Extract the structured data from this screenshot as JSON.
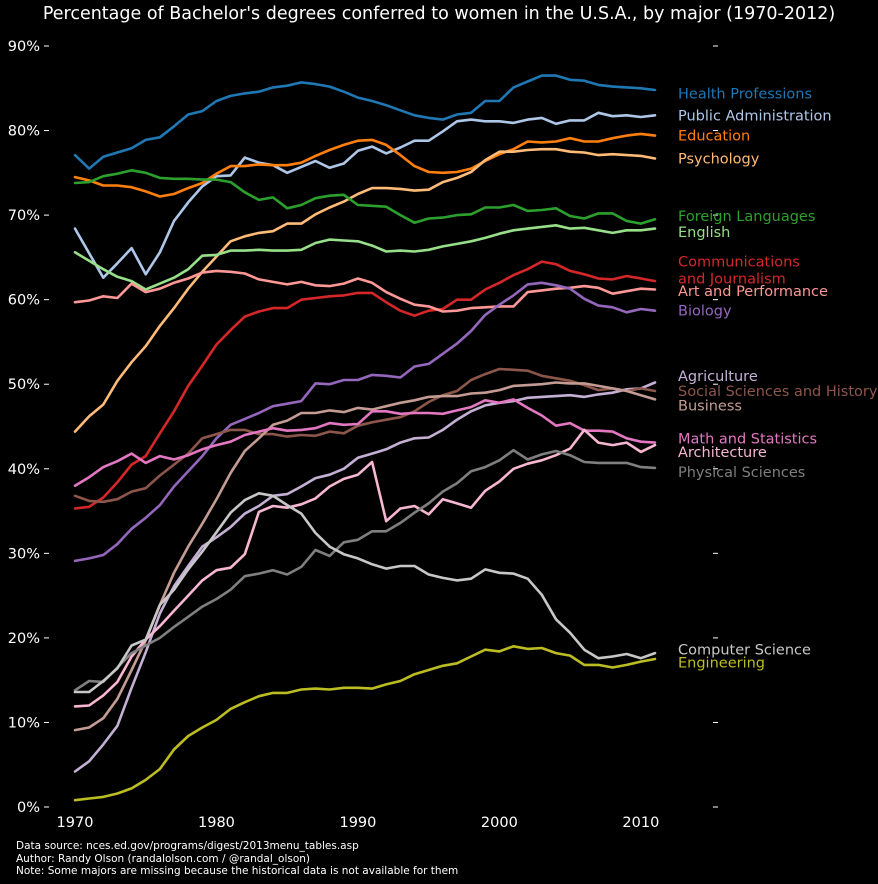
{
  "chart_data": {
    "type": "line",
    "title": "Percentage of Bachelor's degrees conferred to women in the U.S.A., by major (1970-2012)",
    "xlabel": "",
    "ylabel": "",
    "xlim": [
      1970,
      2011
    ],
    "ylim": [
      0,
      90
    ],
    "x_ticks": [
      "1970",
      "1980",
      "1990",
      "2000",
      "2010"
    ],
    "y_ticks": [
      "0%",
      "10%",
      "20%",
      "30%",
      "40%",
      "50%",
      "60%",
      "70%",
      "80%",
      "90%"
    ],
    "grid": false,
    "legend": "none (series labeled directly at line ends)",
    "x": [
      1970,
      1971,
      1972,
      1973,
      1974,
      1975,
      1976,
      1977,
      1978,
      1979,
      1980,
      1981,
      1982,
      1983,
      1984,
      1985,
      1986,
      1987,
      1988,
      1989,
      1990,
      1991,
      1992,
      1993,
      1994,
      1995,
      1996,
      1997,
      1998,
      1999,
      2000,
      2001,
      2002,
      2003,
      2004,
      2005,
      2006,
      2007,
      2008,
      2009,
      2010,
      2011
    ],
    "series": [
      {
        "name": "Health Professions",
        "color": "#1f77b4",
        "label_y": 84.4,
        "values": [
          77.1,
          75.5,
          76.9,
          77.4,
          77.9,
          78.9,
          79.2,
          80.5,
          81.9,
          82.3,
          83.5,
          84.1,
          84.4,
          84.6,
          85.1,
          85.3,
          85.7,
          85.5,
          85.2,
          84.6,
          83.9,
          83.5,
          83.0,
          82.4,
          81.8,
          81.5,
          81.3,
          81.9,
          82.1,
          83.5,
          83.5,
          85.1,
          85.8,
          86.5,
          86.5,
          86.0,
          85.9,
          85.4,
          85.2,
          85.1,
          85.0,
          84.8
        ]
      },
      {
        "name": "Public Administration",
        "color": "#aec7e8",
        "label_y": 81.8,
        "values": [
          68.4,
          65.5,
          62.6,
          64.3,
          66.1,
          63.0,
          65.6,
          69.3,
          71.5,
          73.4,
          74.6,
          74.7,
          76.8,
          76.2,
          75.9,
          75.0,
          75.7,
          76.4,
          75.6,
          76.1,
          77.6,
          78.1,
          77.3,
          78.0,
          78.8,
          78.8,
          79.9,
          81.1,
          81.3,
          81.1,
          81.1,
          80.9,
          81.3,
          81.5,
          80.8,
          81.2,
          81.2,
          82.1,
          81.7,
          81.8,
          81.6,
          81.8
        ]
      },
      {
        "name": "Education",
        "color": "#ff7f0e",
        "label_y": 79.4,
        "values": [
          74.5,
          74.1,
          73.5,
          73.5,
          73.3,
          72.8,
          72.2,
          72.5,
          73.2,
          73.8,
          74.9,
          75.8,
          75.8,
          76.0,
          75.9,
          75.9,
          76.2,
          77.0,
          77.7,
          78.3,
          78.8,
          78.9,
          78.3,
          77.1,
          75.8,
          75.1,
          75.0,
          75.1,
          75.5,
          76.4,
          77.2,
          77.8,
          78.7,
          78.6,
          78.7,
          79.1,
          78.7,
          78.7,
          79.1,
          79.4,
          79.6,
          79.4
        ]
      },
      {
        "name": "Psychology",
        "color": "#ffbb78",
        "label_y": 76.7,
        "values": [
          44.4,
          46.2,
          47.6,
          50.4,
          52.6,
          54.5,
          56.9,
          59.0,
          61.3,
          63.3,
          65.1,
          66.9,
          67.5,
          67.9,
          68.1,
          69.0,
          69.0,
          70.1,
          70.9,
          71.6,
          72.5,
          73.2,
          73.2,
          73.1,
          72.9,
          73.0,
          73.9,
          74.4,
          75.1,
          76.5,
          77.5,
          77.5,
          77.7,
          77.8,
          77.8,
          77.5,
          77.4,
          77.1,
          77.2,
          77.1,
          77.0,
          76.7
        ]
      },
      {
        "name": "Foreign Languages",
        "color": "#2ca02c",
        "label_y": 69.9,
        "values": [
          73.8,
          73.9,
          74.6,
          74.9,
          75.3,
          75.0,
          74.4,
          74.3,
          74.3,
          74.2,
          74.2,
          73.9,
          72.7,
          71.8,
          72.1,
          70.8,
          71.2,
          72.0,
          72.3,
          72.4,
          71.2,
          71.1,
          71.0,
          70.0,
          69.1,
          69.6,
          69.7,
          70.0,
          70.1,
          70.9,
          70.9,
          71.2,
          70.5,
          70.6,
          70.8,
          69.9,
          69.6,
          70.2,
          70.2,
          69.3,
          69.0,
          69.5
        ]
      },
      {
        "name": "English",
        "color": "#98df8a",
        "label_y": 68.0,
        "values": [
          65.6,
          64.6,
          63.6,
          62.7,
          62.2,
          61.2,
          61.9,
          62.6,
          63.6,
          65.2,
          65.3,
          65.8,
          65.8,
          65.9,
          65.8,
          65.8,
          65.9,
          66.7,
          67.1,
          67.0,
          66.9,
          66.4,
          65.7,
          65.8,
          65.7,
          65.9,
          66.3,
          66.6,
          66.9,
          67.3,
          67.8,
          68.2,
          68.4,
          68.6,
          68.8,
          68.4,
          68.5,
          68.2,
          67.9,
          68.2,
          68.2,
          68.4
        ]
      },
      {
        "name": "Communications\nand Journalism",
        "color": "#d62728",
        "label_y": 63.5,
        "values": [
          35.3,
          35.5,
          36.6,
          38.4,
          40.5,
          41.5,
          44.2,
          46.8,
          49.8,
          52.2,
          54.7,
          56.4,
          58.0,
          58.6,
          59.0,
          59.0,
          60.0,
          60.2,
          60.4,
          60.5,
          60.8,
          60.8,
          59.7,
          58.7,
          58.1,
          58.7,
          58.9,
          60.0,
          60.0,
          61.2,
          62.0,
          62.9,
          63.6,
          64.5,
          64.2,
          63.4,
          63.0,
          62.5,
          62.4,
          62.8,
          62.5,
          62.2
        ]
      },
      {
        "name": "Art and Performance",
        "color": "#ff9896",
        "label_y": 61.0,
        "values": [
          59.7,
          59.9,
          60.4,
          60.2,
          61.9,
          60.9,
          61.3,
          62.0,
          62.5,
          63.2,
          63.4,
          63.3,
          63.1,
          62.4,
          62.1,
          61.8,
          62.1,
          61.7,
          61.6,
          61.9,
          62.5,
          62.0,
          60.9,
          60.1,
          59.4,
          59.2,
          58.6,
          58.7,
          59.0,
          59.1,
          59.2,
          59.2,
          60.9,
          61.1,
          61.3,
          61.4,
          61.6,
          61.4,
          60.7,
          61.0,
          61.3,
          61.2
        ]
      },
      {
        "name": "Biology",
        "color": "#9467bd",
        "label_y": 58.7,
        "values": [
          29.1,
          29.4,
          29.8,
          31.1,
          32.9,
          34.2,
          35.7,
          37.9,
          39.7,
          41.5,
          43.6,
          45.2,
          45.9,
          46.6,
          47.4,
          47.7,
          48.0,
          50.1,
          50.0,
          50.5,
          50.5,
          51.1,
          51.0,
          50.8,
          52.1,
          52.4,
          53.6,
          54.8,
          56.3,
          58.2,
          59.4,
          60.5,
          61.8,
          62.0,
          61.7,
          61.3,
          60.1,
          59.3,
          59.1,
          58.5,
          58.9,
          58.7
        ]
      },
      {
        "name": "Agriculture",
        "color": "#c5b0d5",
        "label_y": 51.0,
        "values": [
          4.2,
          5.4,
          7.4,
          9.6,
          14.1,
          18.3,
          22.9,
          26.1,
          28.5,
          30.8,
          31.9,
          33.1,
          34.7,
          35.6,
          36.8,
          37.0,
          37.9,
          38.9,
          39.3,
          40.0,
          41.3,
          41.8,
          42.3,
          43.1,
          43.6,
          43.7,
          44.6,
          45.8,
          46.8,
          47.5,
          47.8,
          48.0,
          48.4,
          48.5,
          48.6,
          48.7,
          48.5,
          48.8,
          49.0,
          49.4,
          49.5,
          50.2
        ]
      },
      {
        "name": "Social Sciences and History",
        "color": "#8c564b",
        "label_y": 49.2,
        "values": [
          36.8,
          36.2,
          36.1,
          36.4,
          37.3,
          37.7,
          39.2,
          40.5,
          41.8,
          43.6,
          44.1,
          44.6,
          44.6,
          44.1,
          44.1,
          43.8,
          44.0,
          43.9,
          44.4,
          44.2,
          45.1,
          45.5,
          45.8,
          46.1,
          46.8,
          47.9,
          48.7,
          49.2,
          50.5,
          51.2,
          51.8,
          51.7,
          51.6,
          51.0,
          50.7,
          50.4,
          49.9,
          49.3,
          49.5,
          49.2,
          49.5,
          49.2
        ]
      },
      {
        "name": "Business",
        "color": "#c49c94",
        "label_y": 47.5,
        "values": [
          9.1,
          9.4,
          10.5,
          12.8,
          16.2,
          19.7,
          23.9,
          27.7,
          30.8,
          33.5,
          36.4,
          39.5,
          42.1,
          43.6,
          45.2,
          45.7,
          46.6,
          46.6,
          46.9,
          46.7,
          47.2,
          47.0,
          47.4,
          47.8,
          48.1,
          48.5,
          48.6,
          48.6,
          48.9,
          49.0,
          49.3,
          49.8,
          49.9,
          50.0,
          50.2,
          50.1,
          50.1,
          49.8,
          49.5,
          49.2,
          48.7,
          48.2
        ]
      },
      {
        "name": "Math and Statistics",
        "color": "#e377c2",
        "label_y": 43.6,
        "values": [
          38.0,
          39.0,
          40.2,
          40.9,
          41.8,
          40.7,
          41.5,
          41.1,
          41.6,
          42.3,
          42.8,
          43.2,
          44.0,
          44.4,
          44.8,
          44.5,
          44.6,
          44.8,
          45.4,
          45.2,
          45.3,
          46.8,
          46.8,
          46.5,
          46.6,
          46.6,
          46.5,
          46.9,
          47.3,
          48.1,
          47.8,
          48.2,
          47.2,
          46.3,
          45.1,
          45.4,
          44.5,
          44.5,
          44.4,
          43.6,
          43.2,
          43.1
        ]
      },
      {
        "name": "Architecture",
        "color": "#f7b6d2",
        "label_y": 42.0,
        "values": [
          11.9,
          12.0,
          13.2,
          14.8,
          17.8,
          19.8,
          21.4,
          23.2,
          25.0,
          26.8,
          28.0,
          28.3,
          29.9,
          34.9,
          35.6,
          35.4,
          35.8,
          36.5,
          37.9,
          38.8,
          39.3,
          40.8,
          33.8,
          35.3,
          35.6,
          34.6,
          36.4,
          35.9,
          35.4,
          37.4,
          38.5,
          40.0,
          40.6,
          41.0,
          41.6,
          42.4,
          44.6,
          43.1,
          42.8,
          43.1,
          42.0,
          42.8
        ]
      },
      {
        "name": "Physical Sciences",
        "color": "#7f7f7f",
        "label_y": 39.6,
        "values": [
          13.8,
          14.9,
          14.8,
          16.5,
          18.2,
          19.1,
          20.0,
          21.3,
          22.5,
          23.7,
          24.6,
          25.7,
          27.3,
          27.6,
          28.0,
          27.5,
          28.4,
          30.4,
          29.7,
          31.3,
          31.6,
          32.6,
          32.6,
          33.6,
          34.8,
          35.9,
          37.3,
          38.3,
          39.7,
          40.2,
          41.0,
          42.2,
          41.1,
          41.7,
          42.1,
          41.6,
          40.8,
          40.7,
          40.7,
          40.7,
          40.2,
          40.1
        ]
      },
      {
        "name": "Computer Science",
        "color": "#c7c7c7",
        "label_y": 18.6,
        "values": [
          13.6,
          13.6,
          14.9,
          16.4,
          19.1,
          19.8,
          23.9,
          25.7,
          28.1,
          30.2,
          32.5,
          34.8,
          36.3,
          37.1,
          36.8,
          35.7,
          34.7,
          32.4,
          30.8,
          29.9,
          29.4,
          28.7,
          28.2,
          28.5,
          28.5,
          27.5,
          27.1,
          26.8,
          27.0,
          28.1,
          27.7,
          27.6,
          27.0,
          25.1,
          22.2,
          20.6,
          18.6,
          17.6,
          17.8,
          18.1,
          17.6,
          18.2
        ]
      },
      {
        "name": "Engineering",
        "color": "#bcbd22",
        "label_y": 17.1,
        "values": [
          0.8,
          1.0,
          1.2,
          1.6,
          2.2,
          3.2,
          4.5,
          6.8,
          8.4,
          9.4,
          10.3,
          11.6,
          12.4,
          13.1,
          13.5,
          13.5,
          13.9,
          14.0,
          13.9,
          14.1,
          14.1,
          14.0,
          14.5,
          14.9,
          15.7,
          16.2,
          16.7,
          17.0,
          17.8,
          18.6,
          18.4,
          19.0,
          18.7,
          18.8,
          18.2,
          17.9,
          16.8,
          16.8,
          16.5,
          16.8,
          17.2,
          17.5
        ]
      }
    ]
  },
  "footer": {
    "line1": "Data source: nces.ed.gov/programs/digest/2013menu_tables.asp",
    "line2": "Author: Randy Olson (randalolson.com / @randal_olson)",
    "line3": "Note: Some majors are missing because the historical data is not available for them"
  }
}
